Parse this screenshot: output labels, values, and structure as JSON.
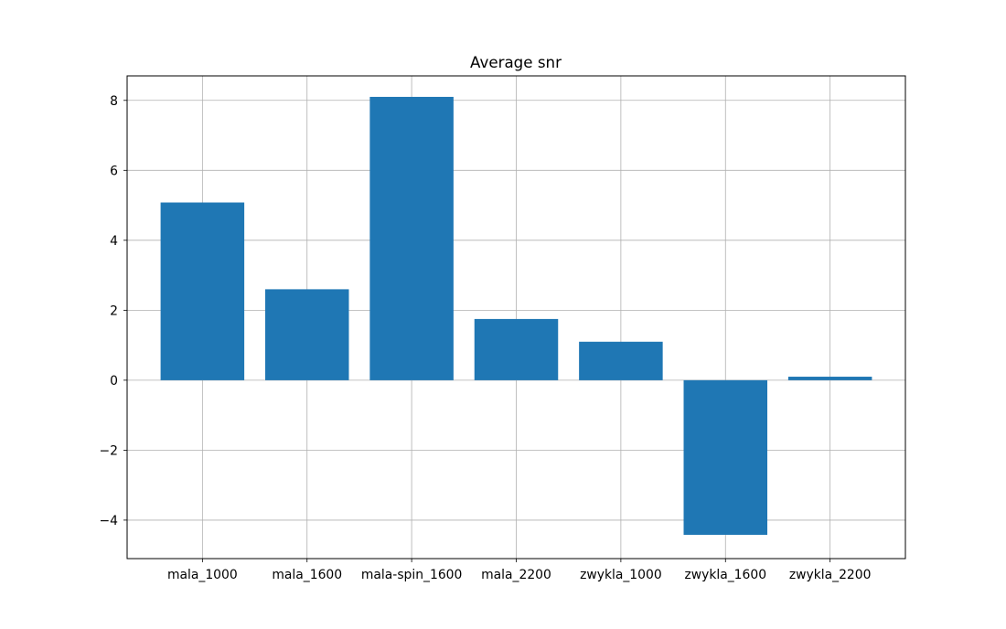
{
  "chart_data": {
    "type": "bar",
    "title": "Average snr",
    "xlabel": "",
    "ylabel": "",
    "categories": [
      "mala_1000",
      "mala_1600",
      "mala-spin_1600",
      "mala_2200",
      "zwykla_1000",
      "zwykla_1600",
      "zwykla_2200"
    ],
    "values": [
      5.08,
      2.6,
      8.1,
      1.75,
      1.1,
      -4.42,
      0.1
    ],
    "ylim": [
      -5.1,
      8.7
    ],
    "yticks": [
      -4,
      -2,
      0,
      2,
      4,
      6,
      8
    ],
    "ytick_labels": [
      "−4",
      "−2",
      "0",
      "2",
      "4",
      "6",
      "8"
    ],
    "grid": true,
    "bar_color": "#1f77b4",
    "grid_color": "#b0b0b0"
  }
}
